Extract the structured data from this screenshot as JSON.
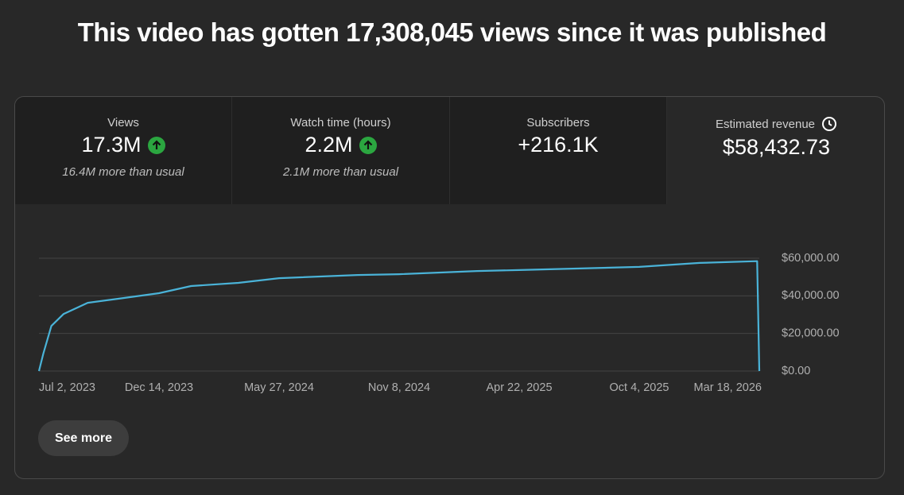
{
  "header": {
    "title": "This video has gotten 17,308,045 views since it was published"
  },
  "metrics": [
    {
      "label": "Views",
      "value": "17.3M",
      "note": "16.4M more than usual"
    },
    {
      "label": "Watch time (hours)",
      "value": "2.2M",
      "note": "2.1M more than usual"
    },
    {
      "label": "Subscribers",
      "value": "+216.1K"
    },
    {
      "label": "Estimated revenue",
      "value": "$58,432.73"
    }
  ],
  "chart_data": {
    "type": "line",
    "color": "#4ab3d8",
    "x": [
      "2023-07-02",
      "2023-07-08",
      "2023-07-19",
      "2023-08-05",
      "2023-09-07",
      "2023-10-20",
      "2023-12-14",
      "2024-01-27",
      "2024-04-01",
      "2024-05-27",
      "2024-09-12",
      "2024-11-08",
      "2025-02-23",
      "2025-04-22",
      "2025-10-04",
      "2025-12-26",
      "2026-03-15",
      "2026-03-18"
    ],
    "values": [
      0,
      9300,
      24000,
      30400,
      36300,
      38500,
      41400,
      45200,
      46900,
      49400,
      51100,
      51500,
      53200,
      53700,
      55400,
      57500,
      58432.73,
      0
    ],
    "xlim": [
      "2023-07-02",
      "2026-03-18"
    ],
    "xticks": [
      {
        "value": "2023-07-02",
        "label": "Jul 2, 2023"
      },
      {
        "value": "2023-12-14",
        "label": "Dec 14, 2023"
      },
      {
        "value": "2024-05-27",
        "label": "May 27, 2024"
      },
      {
        "value": "2024-11-08",
        "label": "Nov 8, 2024"
      },
      {
        "value": "2025-04-22",
        "label": "Apr 22, 2025"
      },
      {
        "value": "2025-10-04",
        "label": "Oct 4, 2025"
      },
      {
        "value": "2026-03-18",
        "label": "Mar 18, 2026"
      }
    ],
    "ylim": [
      0,
      60000
    ],
    "yticks": [
      {
        "value": 0,
        "label": "$0.00"
      },
      {
        "value": 20000,
        "label": "$20,000.00"
      },
      {
        "value": 40000,
        "label": "$40,000.00"
      },
      {
        "value": 60000,
        "label": "$60,000.00"
      }
    ],
    "grid": true
  },
  "button": {
    "label": "See more"
  }
}
